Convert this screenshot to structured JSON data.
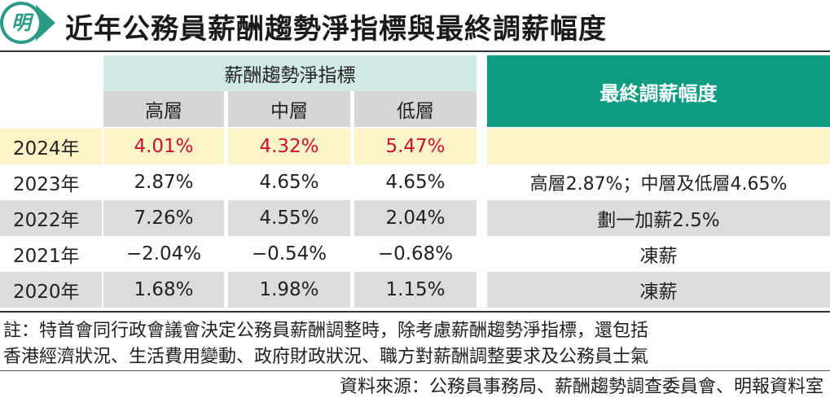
{
  "header": {
    "logo_glyph": "明",
    "title": "近年公務員薪酬趨勢淨指標與最終調薪幅度"
  },
  "table": {
    "group_header": "薪酬趨勢淨指標",
    "final_header": "最終調薪幅度",
    "sub_headers": [
      "高層",
      "中層",
      "低層"
    ],
    "rows": [
      {
        "year": "2024年",
        "high": "4.01%",
        "mid": "4.32%",
        "low": "5.47%",
        "final": ""
      },
      {
        "year": "2023年",
        "high": "2.87%",
        "mid": "4.65%",
        "low": "4.65%",
        "final": "高層2.87%；中層及低層4.65%"
      },
      {
        "year": "2022年",
        "high": "7.26%",
        "mid": "4.55%",
        "low": "2.04%",
        "final": "劃一加薪2.5%"
      },
      {
        "year": "2021年",
        "high": "−2.04%",
        "mid": "−0.54%",
        "low": "−0.68%",
        "final": "凍薪"
      },
      {
        "year": "2020年",
        "high": "1.68%",
        "mid": "1.98%",
        "low": "1.15%",
        "final": "凍薪"
      }
    ]
  },
  "note": {
    "line1": "註：特首會同行政會議會決定公務員薪酬調整時，除考慮薪酬趨勢淨指標，還包括",
    "line2": "香港經濟狀況、生活費用變動、政府財政狀況、職方對薪酬調整要求及公務員士氣"
  },
  "source": "資料來源：公務員事務局、薪酬趨勢調查委員會、明報資料室",
  "colors": {
    "accent_teal": "#0d9c82",
    "light_teal": "#cfeae5",
    "highlight_yellow": "#fdf3c9",
    "row_grey": "#dcdcdc",
    "highlight_red": "#c8102e"
  }
}
